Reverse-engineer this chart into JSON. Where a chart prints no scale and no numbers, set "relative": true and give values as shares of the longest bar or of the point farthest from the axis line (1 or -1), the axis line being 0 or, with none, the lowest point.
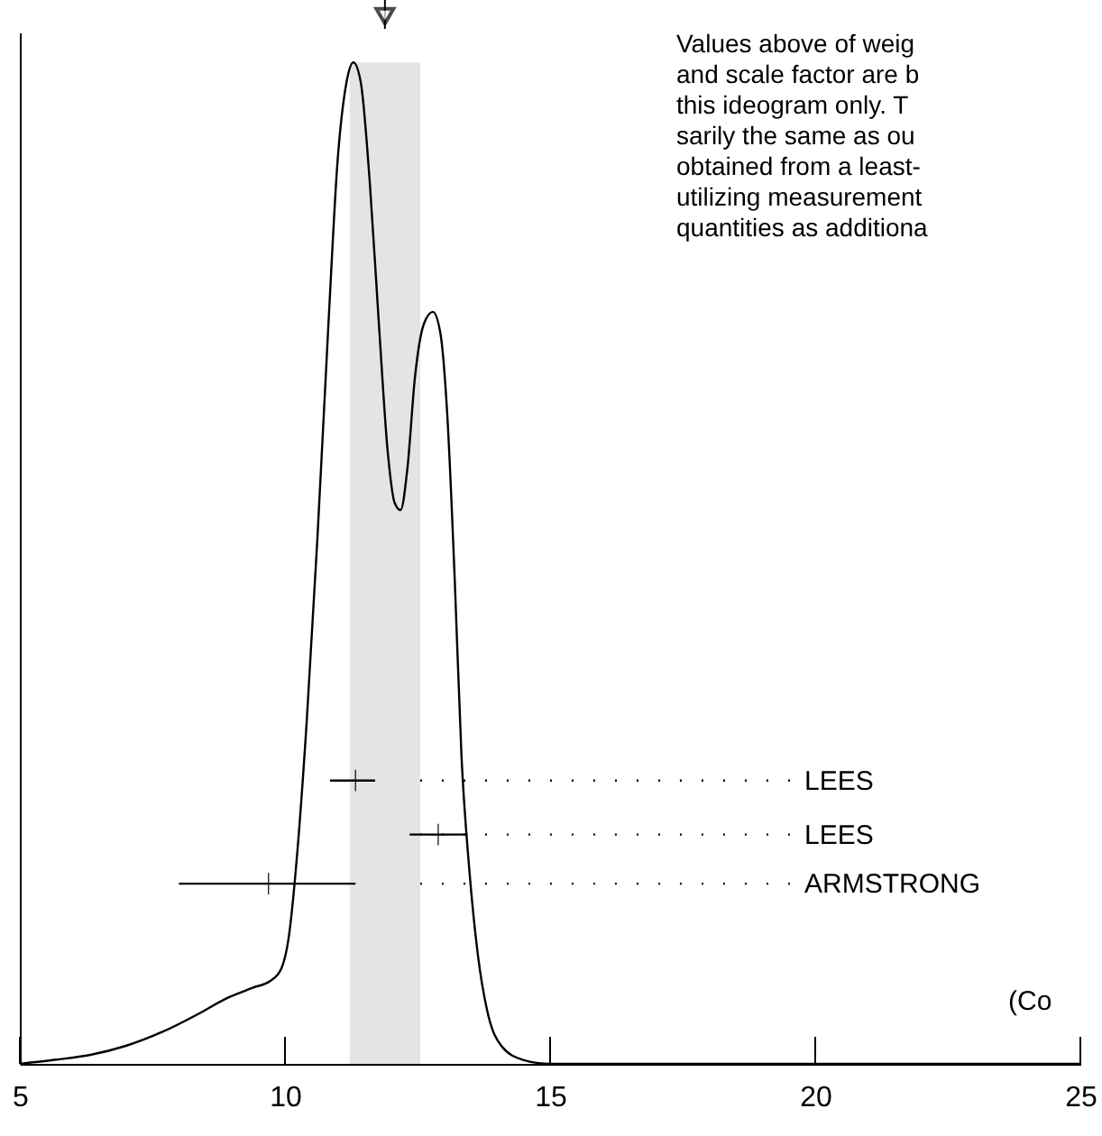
{
  "chart_data": {
    "type": "line",
    "relative": true,
    "xlim": [
      5,
      25
    ],
    "xticks": [
      5,
      10,
      15,
      20,
      25
    ],
    "grid": false,
    "series": [
      {
        "color": "#000000",
        "x": [
          5.0,
          5.65,
          6.33,
          7.0,
          7.69,
          8.37,
          8.88,
          9.39,
          9.73,
          9.93,
          10.07,
          10.24,
          10.41,
          10.61,
          10.82,
          10.99,
          11.16,
          11.29,
          11.43,
          11.6,
          11.77,
          11.94,
          12.07,
          12.18,
          12.31,
          12.45,
          12.62,
          12.79,
          12.93,
          13.06,
          13.2,
          13.33,
          13.47,
          13.64,
          13.81,
          14.08,
          14.49,
          15.0,
          25.0
        ],
        "values": [
          0,
          0.004,
          0.009,
          0.018,
          0.032,
          0.05,
          0.065,
          0.076,
          0.083,
          0.095,
          0.126,
          0.216,
          0.342,
          0.523,
          0.739,
          0.9,
          0.98,
          1.0,
          0.98,
          0.88,
          0.74,
          0.61,
          0.56,
          0.553,
          0.595,
          0.685,
          0.739,
          0.751,
          0.73,
          0.649,
          0.486,
          0.306,
          0.198,
          0.108,
          0.054,
          0.018,
          0.004,
          0,
          0
        ]
      },
      {
        "type": "scatter",
        "marker": "cross",
        "color": "#000000",
        "x": [
          11.33,
          12.89,
          9.69
        ],
        "values": [
          0.283,
          0.229,
          0.18
        ],
        "xerrors": [
          [
            10.85,
            11.7
          ],
          [
            12.35,
            13.44
          ],
          [
            8.0,
            11.33
          ]
        ]
      }
    ],
    "bands": [
      {
        "axis": "x",
        "from": 11.22,
        "to": 12.55,
        "color": "#e4e4e4"
      }
    ],
    "annotations": [
      "LEES",
      "LEES",
      "ARMSTRONG",
      "Values above of weig\nand scale factor are b\nthis ideogram only.  T\nsarily the same as ou\nobtained from a least-\nutilizing measurement\nquantities as additiona",
      "(Co"
    ]
  }
}
